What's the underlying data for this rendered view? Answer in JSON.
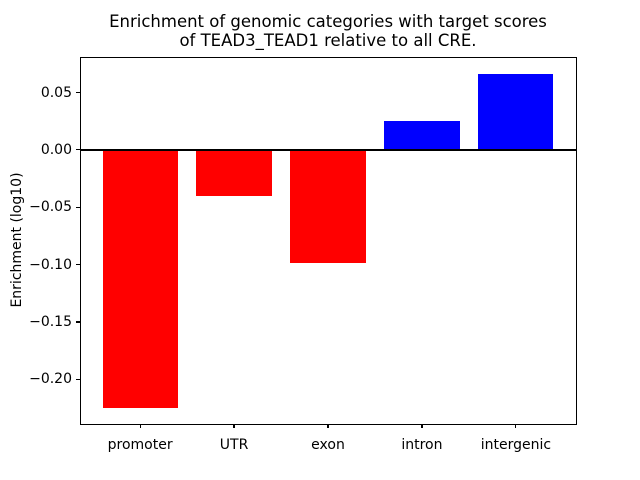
{
  "chart_data": {
    "type": "bar",
    "title": "Enrichment of genomic categories with target scores\nof TEAD3_TEAD1 relative to all CRE.",
    "ylabel": "Enrichment (log10)",
    "xlabel": "",
    "categories": [
      "promoter",
      "UTR",
      "exon",
      "intron",
      "intergenic"
    ],
    "values": [
      -0.225,
      -0.04,
      -0.099,
      0.025,
      0.066
    ],
    "bar_colors": [
      "#ff0000",
      "#ff0000",
      "#ff0000",
      "#0000ff",
      "#0000ff"
    ],
    "negative_color": "#ff0000",
    "positive_color": "#0000ff",
    "baseline": 0,
    "bar_width": 0.8,
    "xlim": [
      -0.64,
      4.64
    ],
    "ylim": [
      -0.239,
      0.081
    ],
    "ytick_values": [
      0.05,
      0.0,
      -0.05,
      -0.1,
      -0.15,
      -0.2
    ],
    "ytick_labels": [
      "0.05",
      "0.00",
      "−0.05",
      "−0.10",
      "−0.15",
      "−0.20"
    ],
    "grid": false,
    "legend": "none",
    "frame_color": "#000000",
    "background_color": "#ffffff"
  }
}
